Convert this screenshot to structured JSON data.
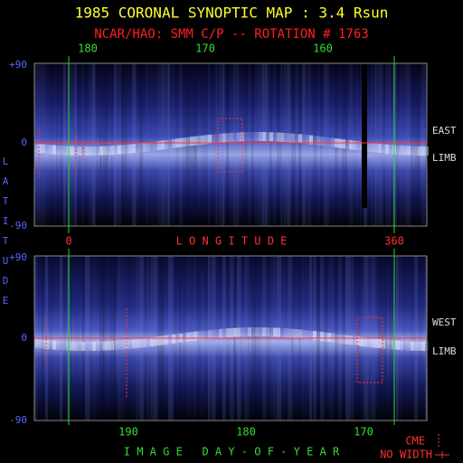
{
  "header": {
    "title": "1985 CORONAL SYNOPTIC MAP : 3.4 Rsun",
    "subtitle": "NCAR/HAO: SMM C/P -- ROTATION # 1763"
  },
  "top_axis": {
    "ticks": [
      "180",
      "170",
      "160"
    ]
  },
  "longitude_axis": {
    "label": "L O N G I T U D E",
    "start": "0",
    "end": "360"
  },
  "latitude_axis": {
    "label": "LATITUDE",
    "ticks": [
      "+90",
      "0",
      "-90"
    ]
  },
  "panels": [
    {
      "limb": [
        "EAST",
        "LIMB"
      ]
    },
    {
      "limb": [
        "WEST",
        "LIMB"
      ]
    }
  ],
  "bottom_axis": {
    "label": "I M A G E   D A Y - O F - Y E A R",
    "ticks": [
      "190",
      "180",
      "170"
    ]
  },
  "legend": {
    "cme": "CME",
    "no_width": "NO WIDTH"
  }
}
